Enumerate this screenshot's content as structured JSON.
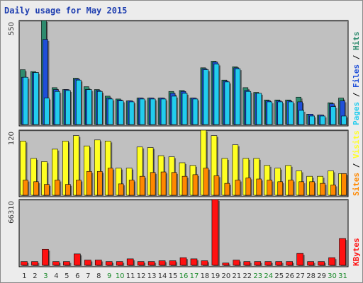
{
  "title": "Daily usage for May 2015",
  "colors": {
    "hits": "#2e8b6e",
    "files": "#1f4fd8",
    "pages": "#22ccee",
    "visits": "#ffff22",
    "sites": "#ff8800",
    "kbytes": "#ff1111",
    "weekday": "#333333",
    "weekend": "#1a8a2a",
    "panel": "#c0c0c0"
  },
  "chart_data": [
    {
      "type": "bar",
      "panel": "hits-files-pages",
      "ymax_label": "550",
      "ylim": [
        0,
        550
      ],
      "legend": [
        "Pages",
        "Files",
        "Hits"
      ],
      "categories": [
        "1",
        "2",
        "3",
        "4",
        "5",
        "6",
        "7",
        "8",
        "9",
        "10",
        "11",
        "12",
        "13",
        "14",
        "15",
        "16",
        "17",
        "18",
        "19",
        "20",
        "21",
        "22",
        "23",
        "24",
        "25",
        "26",
        "27",
        "28",
        "29",
        "30",
        "31"
      ],
      "series": [
        {
          "name": "Hits",
          "values": [
            290,
            280,
            550,
            195,
            185,
            245,
            200,
            185,
            150,
            135,
            125,
            140,
            140,
            140,
            175,
            180,
            140,
            300,
            335,
            235,
            305,
            195,
            170,
            130,
            130,
            130,
            145,
            55,
            50,
            115,
            140
          ]
        },
        {
          "name": "Files",
          "values": [
            250,
            275,
            450,
            185,
            185,
            240,
            185,
            180,
            140,
            130,
            125,
            140,
            140,
            140,
            165,
            175,
            140,
            295,
            330,
            230,
            300,
            180,
            165,
            125,
            125,
            125,
            120,
            55,
            50,
            110,
            125
          ]
        },
        {
          "name": "Pages",
          "values": [
            250,
            275,
            140,
            175,
            180,
            235,
            185,
            175,
            135,
            125,
            120,
            135,
            135,
            135,
            150,
            165,
            135,
            290,
            320,
            225,
            295,
            175,
            165,
            120,
            120,
            120,
            75,
            45,
            45,
            95,
            45
          ]
        }
      ]
    },
    {
      "type": "bar",
      "panel": "visits-sites",
      "ymax_label": "120",
      "ylim": [
        0,
        120
      ],
      "legend": [
        "Sites",
        "Visits"
      ],
      "categories": [
        "1",
        "2",
        "3",
        "4",
        "5",
        "6",
        "7",
        "8",
        "9",
        "10",
        "11",
        "12",
        "13",
        "14",
        "15",
        "16",
        "17",
        "18",
        "19",
        "20",
        "21",
        "22",
        "23",
        "24",
        "25",
        "26",
        "27",
        "28",
        "29",
        "30",
        "31"
      ],
      "series": [
        {
          "name": "Visits",
          "values": [
            100,
            68,
            62,
            85,
            100,
            110,
            91,
            102,
            100,
            50,
            50,
            89,
            88,
            73,
            71,
            60,
            55,
            120,
            110,
            68,
            93,
            68,
            68,
            55,
            50,
            55,
            45,
            35,
            35,
            45,
            40
          ]
        },
        {
          "name": "Sites",
          "values": [
            28,
            25,
            20,
            28,
            20,
            28,
            44,
            44,
            50,
            21,
            28,
            35,
            42,
            43,
            42,
            35,
            38,
            50,
            36,
            22,
            28,
            32,
            30,
            28,
            25,
            28,
            25,
            25,
            22,
            19,
            40
          ]
        }
      ]
    },
    {
      "type": "bar",
      "panel": "kbytes",
      "ymax_label": "66310",
      "ylim": [
        0,
        66310
      ],
      "legend": [
        "KBytes"
      ],
      "categories": [
        "1",
        "2",
        "3",
        "4",
        "5",
        "6",
        "7",
        "8",
        "9",
        "10",
        "11",
        "12",
        "13",
        "14",
        "15",
        "16",
        "17",
        "18",
        "19",
        "20",
        "21",
        "22",
        "23",
        "24",
        "25",
        "26",
        "27",
        "28",
        "29",
        "30",
        "31"
      ],
      "series": [
        {
          "name": "KBytes",
          "values": [
            3800,
            3800,
            16200,
            3800,
            3800,
            11500,
            5300,
            5300,
            3800,
            3800,
            6500,
            3800,
            3800,
            4600,
            4600,
            7700,
            6500,
            4600,
            66310,
            2300,
            5300,
            3800,
            3800,
            3800,
            3800,
            3800,
            12000,
            3800,
            3800,
            7700,
            27000
          ]
        }
      ]
    }
  ],
  "weekend_days": [
    3,
    9,
    10,
    16,
    17,
    23,
    24,
    30,
    31
  ]
}
